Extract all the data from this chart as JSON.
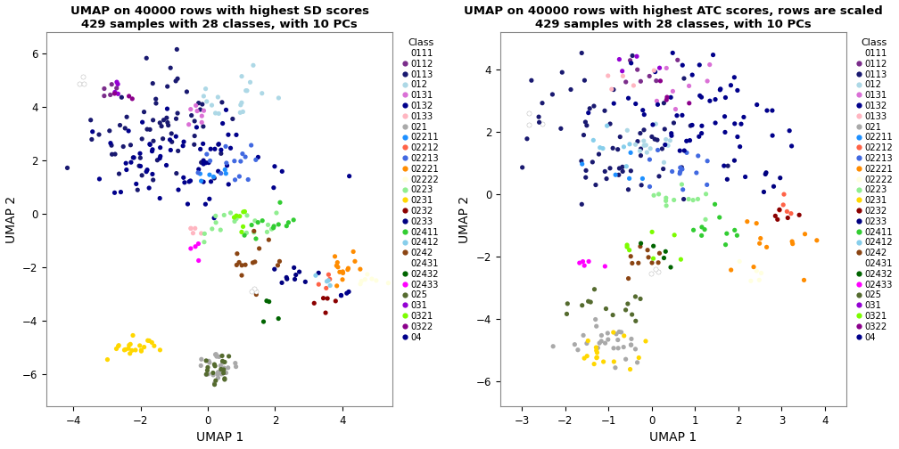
{
  "title1": "UMAP on 40000 rows with highest SD scores\n429 samples with 28 classes, with 10 PCs",
  "title2": "UMAP on 40000 rows with highest ATC scores, rows are scaled\n429 samples with 28 classes, with 10 PCs",
  "xlabel": "UMAP 1",
  "ylabel": "UMAP 2",
  "legend_title": "Class",
  "legend_classes": [
    "0111",
    "0112",
    "0113",
    "012",
    "0131",
    "0132",
    "0133",
    "021",
    "02211",
    "02212",
    "02213",
    "02221",
    "02222",
    "0223",
    "0231",
    "0232",
    "0233",
    "02411",
    "02412",
    "0242",
    "02431",
    "02432",
    "02433",
    "025",
    "031",
    "0321",
    "0322",
    "04"
  ],
  "class_colors": {
    "0111": "#FFFFFF",
    "0112": "#7B2D8B",
    "0113": "#191970",
    "012": "#ADD8E6",
    "0131": "#DA70D6",
    "0132": "#00008B",
    "0133": "#FFB6C1",
    "021": "#A9A9A9",
    "02211": "#1E90FF",
    "02212": "#FF6347",
    "02213": "#4169E1",
    "02221": "#FF8C00",
    "02222": "#FFFFE0",
    "0223": "#90EE90",
    "0231": "#FFD700",
    "0232": "#8B0000",
    "0233": "#000080",
    "02411": "#32CD32",
    "02412": "#87CEEB",
    "0242": "#8B4513",
    "02431": "#FFFFFF",
    "02432": "#006400",
    "02433": "#FF00FF",
    "025": "#556B2F",
    "031": "#9400D3",
    "0321": "#7CFC00",
    "0322": "#8B008B",
    "04": "#00008B"
  },
  "plot1_xlim": [
    -4.8,
    5.5
  ],
  "plot1_ylim": [
    -7.2,
    6.8
  ],
  "plot2_xlim": [
    -3.5,
    4.5
  ],
  "plot2_ylim": [
    -6.8,
    5.2
  ],
  "plot1_xticks": [
    -4,
    -2,
    0,
    2,
    4
  ],
  "plot1_yticks": [
    -6,
    -4,
    -2,
    0,
    2,
    4,
    6
  ],
  "plot2_xticks": [
    -3,
    -2,
    -1,
    0,
    1,
    2,
    3,
    4
  ],
  "plot2_yticks": [
    -6,
    -4,
    -2,
    0,
    2,
    4
  ],
  "dot_size": 14,
  "bg_color": "#FFFFFF"
}
